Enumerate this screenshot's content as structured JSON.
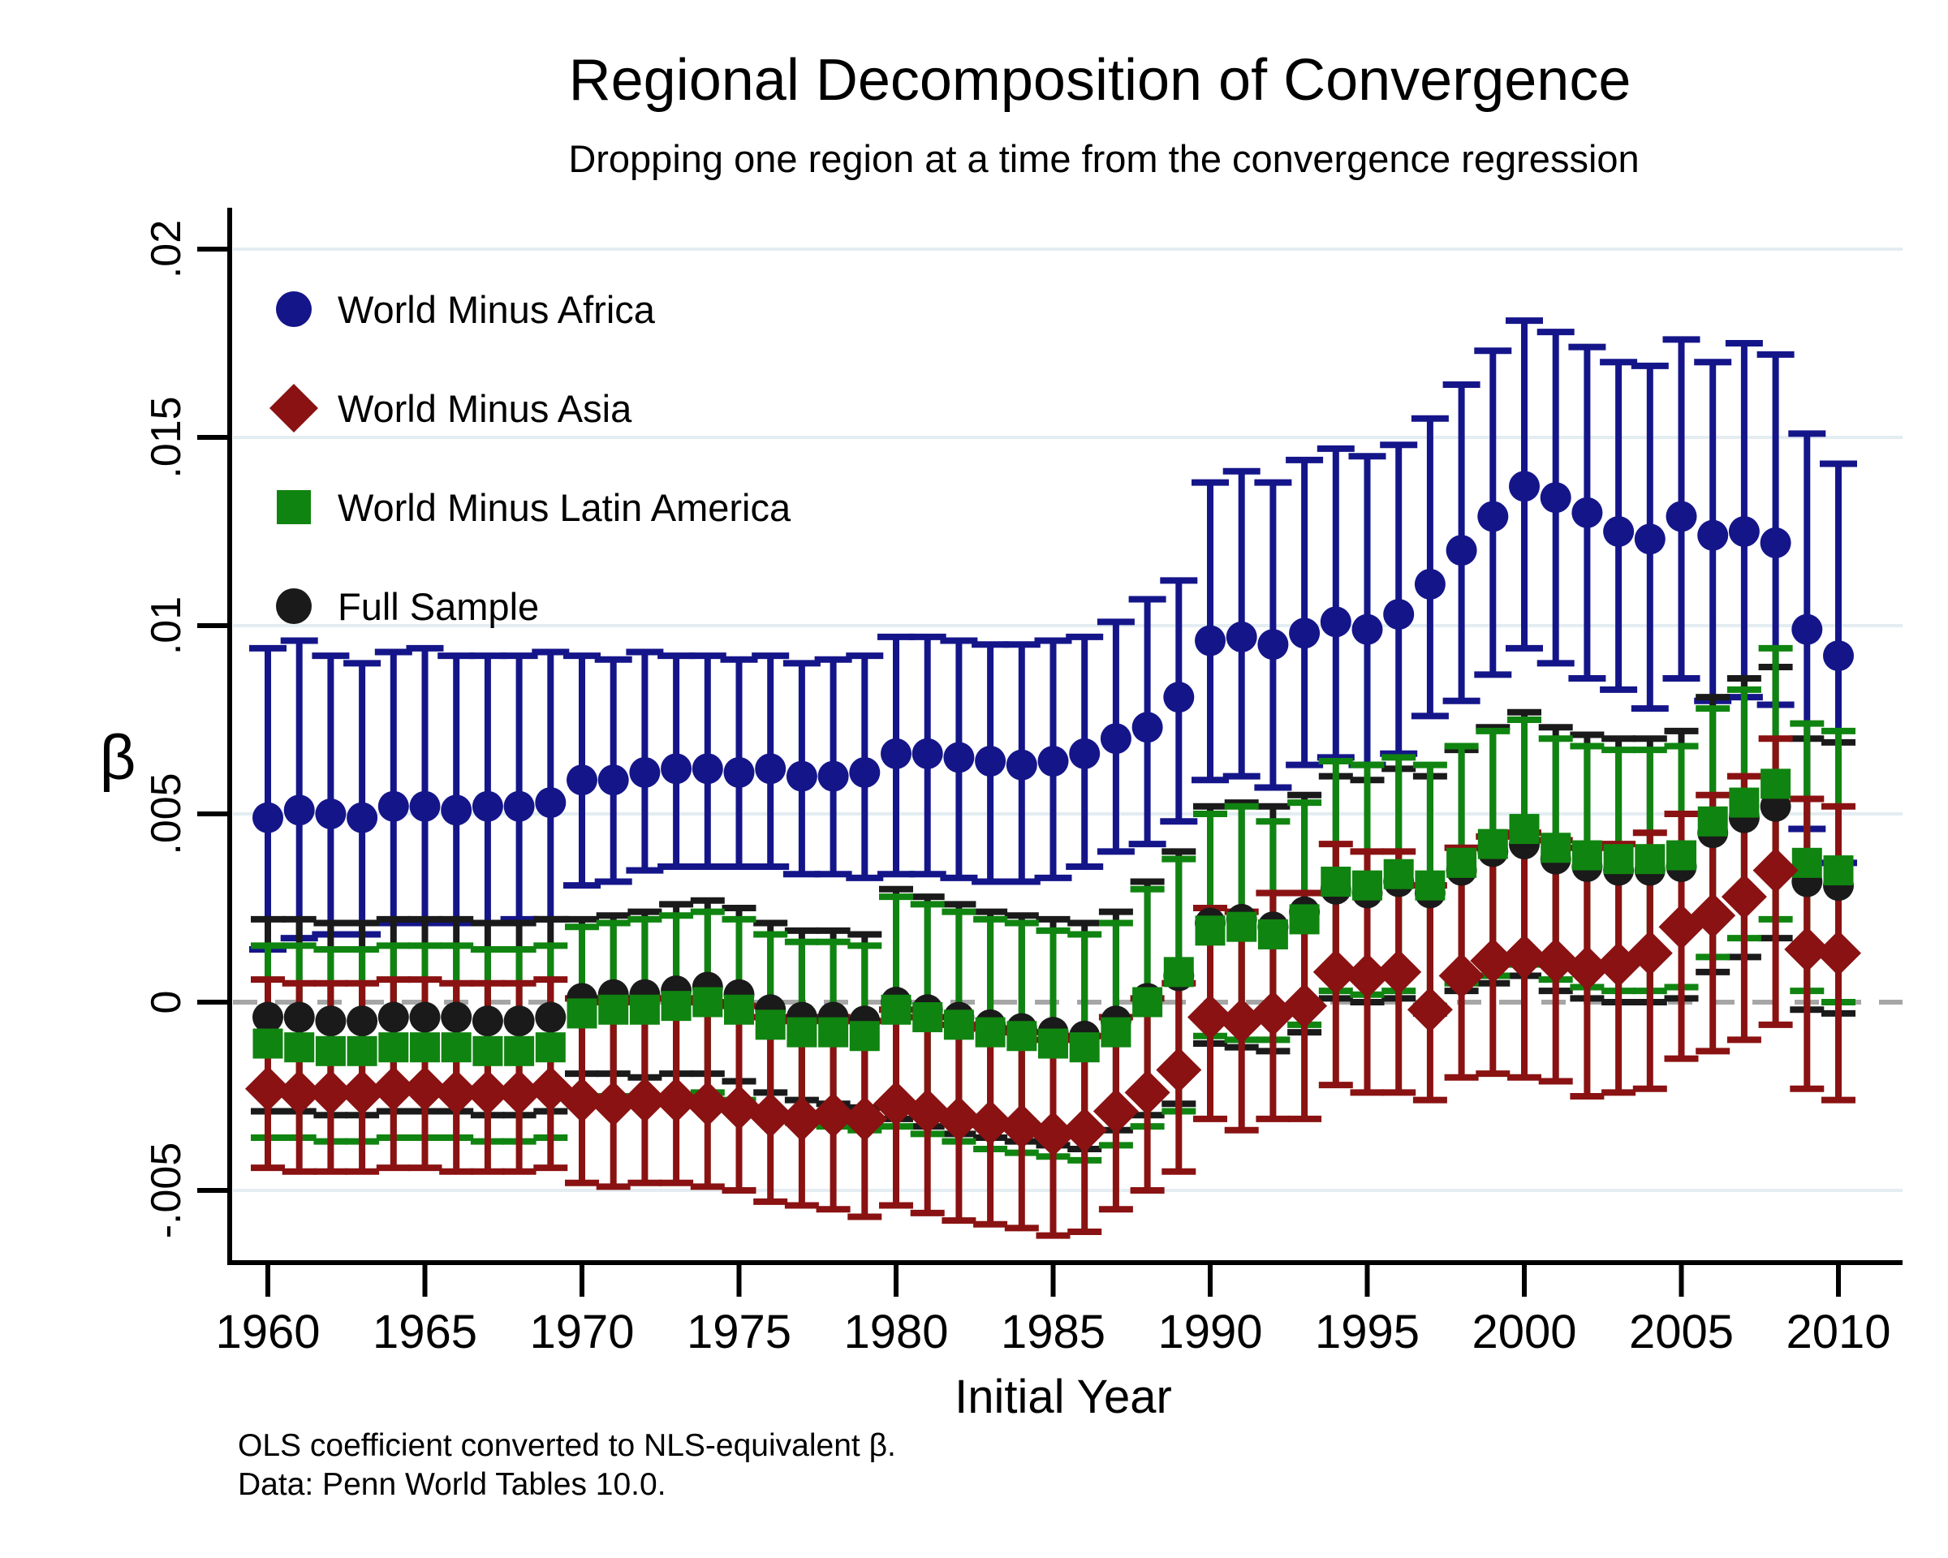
{
  "title": "Regional Decomposition of Convergence",
  "subtitle": "Dropping one region at a time from the convergence regression",
  "y_axis": {
    "label": "β",
    "ticks": [
      {
        "label": ".02",
        "value": 0.02
      },
      {
        "label": ".015",
        "value": 0.015
      },
      {
        "label": ".01",
        "value": 0.01
      },
      {
        "label": ".005",
        "value": 0.005
      },
      {
        "label": "0",
        "value": 0
      },
      {
        "label": "-.005",
        "value": -0.005
      }
    ]
  },
  "x_axis": {
    "label": "Initial Year",
    "ticks": [
      {
        "label": "1960",
        "year": 1960
      },
      {
        "label": "1965",
        "year": 1965
      },
      {
        "label": "1970",
        "year": 1970
      },
      {
        "label": "1975",
        "year": 1975
      },
      {
        "label": "1980",
        "year": 1980
      },
      {
        "label": "1985",
        "year": 1985
      },
      {
        "label": "1990",
        "year": 1990
      },
      {
        "label": "1995",
        "year": 1995
      },
      {
        "label": "2000",
        "year": 2000
      },
      {
        "label": "2005",
        "year": 2005
      },
      {
        "label": "2010",
        "year": 2010
      }
    ]
  },
  "footnotes": [
    "OLS coefficient converted to NLS-equivalent β.",
    "Data: Penn World Tables 10.0."
  ],
  "colors": {
    "navy": "#15158A",
    "maroon": "#8A1212",
    "green": "#108410",
    "black": "#1A1A1A",
    "gridline": "#E3EDF2",
    "zero_line": "#A6A6A6",
    "axis": "#000000"
  },
  "legend": [
    {
      "label": "World Minus Africa",
      "shape": "circle",
      "color": "#15158A"
    },
    {
      "label": "World Minus Asia",
      "shape": "diamond",
      "color": "#8A1212"
    },
    {
      "label": "World Minus Latin America",
      "shape": "square",
      "color": "#108410"
    },
    {
      "label": "Full Sample",
      "shape": "circle",
      "color": "#1A1A1A"
    }
  ],
  "chart_data": {
    "type": "scatter",
    "subtype": "point-estimates-with-confidence-intervals",
    "title": "Regional Decomposition of Convergence",
    "xlabel": "Initial Year",
    "ylabel": "β",
    "xlim": [
      1958.5,
      2012
    ],
    "ylim": [
      -0.0069,
      0.0211
    ],
    "grid": "horizontal",
    "legend_position": "top-left-inside",
    "x": [
      1960,
      1961,
      1962,
      1963,
      1964,
      1965,
      1966,
      1967,
      1968,
      1969,
      1970,
      1971,
      1972,
      1973,
      1974,
      1975,
      1976,
      1977,
      1978,
      1979,
      1980,
      1981,
      1982,
      1983,
      1984,
      1985,
      1986,
      1987,
      1988,
      1989,
      1990,
      1991,
      1992,
      1993,
      1994,
      1995,
      1996,
      1997,
      1998,
      1999,
      2000,
      2001,
      2002,
      2003,
      2004,
      2005,
      2006,
      2007,
      2008,
      2009,
      2010
    ],
    "series": [
      {
        "name": "world-minus-africa",
        "label": "World Minus Africa",
        "shape": "circle",
        "color": "#15158A",
        "values": [
          0.0049,
          0.0051,
          0.005,
          0.0049,
          0.0052,
          0.0052,
          0.0051,
          0.0052,
          0.0052,
          0.0053,
          0.0059,
          0.0059,
          0.0061,
          0.0062,
          0.0062,
          0.0061,
          0.0062,
          0.006,
          0.006,
          0.0061,
          0.0066,
          0.0066,
          0.0065,
          0.0064,
          0.0063,
          0.0064,
          0.0066,
          0.007,
          0.0073,
          0.0081,
          0.0096,
          0.0097,
          0.0095,
          0.0098,
          0.0101,
          0.0099,
          0.0103,
          0.0111,
          0.012,
          0.0129,
          0.0137,
          0.0134,
          0.013,
          0.0125,
          0.0123,
          0.0129,
          0.0124,
          0.0125,
          0.0122,
          0.0099,
          0.0092
        ],
        "ci_lo": [
          0.0014,
          0.0017,
          0.0018,
          0.0018,
          0.0021,
          0.0021,
          0.0021,
          0.0021,
          0.0022,
          0.0022,
          0.0031,
          0.0032,
          0.0035,
          0.0036,
          0.0036,
          0.0036,
          0.0036,
          0.0034,
          0.0034,
          0.0033,
          0.0034,
          0.0034,
          0.0033,
          0.0032,
          0.0032,
          0.0033,
          0.0036,
          0.004,
          0.0042,
          0.0048,
          0.0059,
          0.006,
          0.0057,
          0.0063,
          0.0065,
          0.0063,
          0.0066,
          0.0076,
          0.008,
          0.0087,
          0.0094,
          0.009,
          0.0086,
          0.0083,
          0.0078,
          0.0086,
          0.008,
          0.0081,
          0.0079,
          0.0046,
          0.0037
        ],
        "ci_hi": [
          0.0094,
          0.0096,
          0.0092,
          0.009,
          0.0093,
          0.0094,
          0.0092,
          0.0092,
          0.0092,
          0.0093,
          0.0092,
          0.0091,
          0.0093,
          0.0092,
          0.0092,
          0.0091,
          0.0092,
          0.009,
          0.0091,
          0.0092,
          0.0097,
          0.0097,
          0.0096,
          0.0095,
          0.0095,
          0.0096,
          0.0097,
          0.0101,
          0.0107,
          0.0112,
          0.0138,
          0.0141,
          0.0138,
          0.0144,
          0.0147,
          0.0145,
          0.0148,
          0.0155,
          0.0164,
          0.0173,
          0.0181,
          0.0178,
          0.0174,
          0.017,
          0.0169,
          0.0176,
          0.017,
          0.0175,
          0.0172,
          0.0151,
          0.0143
        ]
      },
      {
        "name": "world-minus-asia",
        "label": "World Minus Asia",
        "shape": "diamond",
        "color": "#8A1212",
        "values": [
          -0.0023,
          -0.0024,
          -0.0024,
          -0.0024,
          -0.0023,
          -0.0023,
          -0.0024,
          -0.0024,
          -0.0024,
          -0.0023,
          -0.0026,
          -0.0027,
          -0.0026,
          -0.0026,
          -0.0027,
          -0.0028,
          -0.003,
          -0.0031,
          -0.003,
          -0.0031,
          -0.0027,
          -0.0029,
          -0.0031,
          -0.0032,
          -0.0033,
          -0.0035,
          -0.0034,
          -0.0029,
          -0.0024,
          -0.0018,
          -0.0004,
          -0.0005,
          -0.0003,
          -0.0001,
          0.0008,
          0.0007,
          0.0008,
          -0.0002,
          0.0007,
          0.0011,
          0.0012,
          0.0011,
          0.0009,
          0.001,
          0.0013,
          0.002,
          0.0023,
          0.0028,
          0.0035,
          0.0014,
          0.0013
        ],
        "ci_lo": [
          -0.0044,
          -0.0045,
          -0.0045,
          -0.0045,
          -0.0044,
          -0.0044,
          -0.0045,
          -0.0045,
          -0.0045,
          -0.0044,
          -0.0048,
          -0.0049,
          -0.0048,
          -0.0048,
          -0.0049,
          -0.005,
          -0.0053,
          -0.0054,
          -0.0055,
          -0.0057,
          -0.0054,
          -0.0056,
          -0.0058,
          -0.0059,
          -0.006,
          -0.0062,
          -0.0061,
          -0.0055,
          -0.005,
          -0.0045,
          -0.0031,
          -0.0034,
          -0.0031,
          -0.0031,
          -0.0022,
          -0.0024,
          -0.0024,
          -0.0026,
          -0.002,
          -0.0019,
          -0.002,
          -0.0021,
          -0.0025,
          -0.0024,
          -0.0023,
          -0.0015,
          -0.0013,
          -0.001,
          -0.0006,
          -0.0023,
          -0.0026
        ],
        "ci_hi": [
          0.0006,
          0.0005,
          0.0005,
          0.0005,
          0.0006,
          0.0006,
          0.0005,
          0.0005,
          0.0005,
          0.0006,
          0.0001,
          0.0,
          0.0001,
          0.0001,
          0.0,
          -0.0001,
          -0.0004,
          -0.0005,
          -0.0004,
          -0.0005,
          -0.0002,
          -0.0004,
          -0.0006,
          -0.0007,
          -0.0008,
          -0.001,
          -0.0009,
          -0.0004,
          0.0001,
          0.0005,
          0.0025,
          0.0024,
          0.0029,
          0.0029,
          0.0042,
          0.004,
          0.004,
          0.0031,
          0.0041,
          0.0044,
          0.0045,
          0.0043,
          0.0041,
          0.0042,
          0.0045,
          0.005,
          0.0055,
          0.006,
          0.007,
          0.0054,
          0.0052
        ]
      },
      {
        "name": "world-minus-latin-america",
        "label": "World Minus Latin America",
        "shape": "square",
        "color": "#108410",
        "values": [
          -0.0011,
          -0.0012,
          -0.0013,
          -0.0013,
          -0.0012,
          -0.0012,
          -0.0012,
          -0.0013,
          -0.0013,
          -0.0012,
          -0.0003,
          -0.0002,
          -0.0002,
          -0.0001,
          0.0,
          -0.0002,
          -0.0006,
          -0.0008,
          -0.0008,
          -0.0009,
          -0.0002,
          -0.0004,
          -0.0006,
          -0.0008,
          -0.0009,
          -0.0011,
          -0.0012,
          -0.0008,
          0.0,
          0.0008,
          0.0019,
          0.002,
          0.0018,
          0.0022,
          0.0032,
          0.0031,
          0.0034,
          0.0031,
          0.0037,
          0.0042,
          0.0046,
          0.0041,
          0.0039,
          0.0038,
          0.0038,
          0.0039,
          0.0048,
          0.0053,
          0.0058,
          0.0037,
          0.0035
        ],
        "ci_lo": [
          -0.0036,
          -0.0036,
          -0.0037,
          -0.0037,
          -0.0036,
          -0.0036,
          -0.0036,
          -0.0037,
          -0.0037,
          -0.0036,
          -0.0026,
          -0.0025,
          -0.0026,
          -0.0025,
          -0.0024,
          -0.0026,
          -0.003,
          -0.0032,
          -0.0033,
          -0.0034,
          -0.0033,
          -0.0035,
          -0.0037,
          -0.0039,
          -0.004,
          -0.0041,
          -0.0042,
          -0.0038,
          -0.0033,
          -0.0029,
          -0.0009,
          -0.001,
          -0.001,
          -0.0006,
          0.0003,
          0.0002,
          0.0003,
          -0.0001,
          0.0005,
          0.0007,
          0.001,
          0.0006,
          0.0004,
          0.0003,
          0.0003,
          0.0004,
          0.0012,
          0.0017,
          0.0022,
          0.0003,
          0.0
        ],
        "ci_hi": [
          0.0015,
          0.0015,
          0.0014,
          0.0014,
          0.0015,
          0.0015,
          0.0015,
          0.0014,
          0.0014,
          0.0015,
          0.002,
          0.0021,
          0.0022,
          0.0023,
          0.0024,
          0.0022,
          0.0018,
          0.0016,
          0.0016,
          0.0015,
          0.0028,
          0.0026,
          0.0024,
          0.0022,
          0.0021,
          0.0019,
          0.0018,
          0.0021,
          0.003,
          0.0038,
          0.005,
          0.0052,
          0.0048,
          0.0053,
          0.0064,
          0.0063,
          0.0065,
          0.0063,
          0.0068,
          0.0072,
          0.0075,
          0.007,
          0.0068,
          0.0067,
          0.0067,
          0.0068,
          0.0078,
          0.0083,
          0.0094,
          0.0074,
          0.0072
        ]
      },
      {
        "name": "full-sample",
        "label": "Full Sample",
        "shape": "circle",
        "color": "#1A1A1A",
        "values": [
          -0.0004,
          -0.0004,
          -0.0005,
          -0.0005,
          -0.0004,
          -0.0004,
          -0.0004,
          -0.0005,
          -0.0005,
          -0.0004,
          0.0001,
          0.0002,
          0.0002,
          0.0003,
          0.0004,
          0.0002,
          -0.0002,
          -0.0004,
          -0.0004,
          -0.0005,
          0.0,
          -0.0002,
          -0.0004,
          -0.0006,
          -0.0007,
          -0.0008,
          -0.0009,
          -0.0005,
          0.0001,
          0.0007,
          0.0021,
          0.0022,
          0.002,
          0.0024,
          0.003,
          0.0029,
          0.0032,
          0.0029,
          0.0035,
          0.004,
          0.0042,
          0.0038,
          0.0036,
          0.0035,
          0.0035,
          0.0036,
          0.0045,
          0.0049,
          0.0052,
          0.0032,
          0.0031
        ],
        "ci_lo": [
          -0.0029,
          -0.0029,
          -0.003,
          -0.003,
          -0.0029,
          -0.0029,
          -0.0029,
          -0.003,
          -0.003,
          -0.0029,
          -0.0019,
          -0.0019,
          -0.002,
          -0.0019,
          -0.0019,
          -0.0021,
          -0.0024,
          -0.0026,
          -0.0027,
          -0.0028,
          -0.0031,
          -0.0033,
          -0.0035,
          -0.0036,
          -0.0037,
          -0.0038,
          -0.0039,
          -0.0034,
          -0.003,
          -0.0027,
          -0.0011,
          -0.0012,
          -0.0013,
          -0.0008,
          0.0001,
          0.0,
          0.0001,
          -0.0003,
          0.0003,
          0.0005,
          0.0007,
          0.0003,
          0.0001,
          0.0,
          0.0,
          0.0001,
          0.0008,
          0.0012,
          0.0017,
          -0.0002,
          -0.0003
        ],
        "ci_hi": [
          0.0022,
          0.0022,
          0.0021,
          0.0021,
          0.0022,
          0.0022,
          0.0022,
          0.0021,
          0.0021,
          0.0022,
          0.0022,
          0.0023,
          0.0024,
          0.0026,
          0.0027,
          0.0025,
          0.0021,
          0.0019,
          0.0019,
          0.0018,
          0.003,
          0.0028,
          0.0026,
          0.0024,
          0.0023,
          0.0022,
          0.0021,
          0.0024,
          0.0032,
          0.004,
          0.0052,
          0.0053,
          0.0052,
          0.0055,
          0.006,
          0.0059,
          0.0062,
          0.006,
          0.0067,
          0.0073,
          0.0077,
          0.0073,
          0.0071,
          0.007,
          0.007,
          0.0072,
          0.0081,
          0.0086,
          0.0089,
          0.007,
          0.0069
        ]
      }
    ]
  }
}
